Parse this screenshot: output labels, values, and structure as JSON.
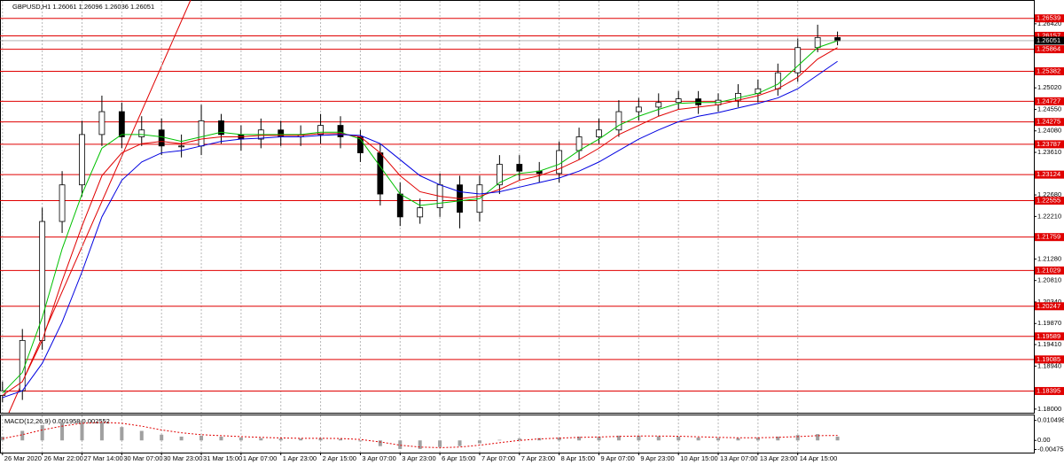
{
  "chart_data": {
    "type": "candlestick",
    "title": "GBPUSD,H1 1.26061 1.26096 1.26036 1.26051",
    "x": [
      0,
      8,
      16,
      24,
      32,
      40,
      48,
      56,
      64,
      72,
      80,
      88,
      96,
      104,
      112,
      120,
      128,
      136,
      144,
      152,
      160,
      168,
      176,
      184,
      192,
      200,
      208,
      216,
      224,
      232,
      240,
      248,
      256,
      264,
      272,
      280,
      288,
      296,
      304,
      312,
      320,
      328,
      336
    ],
    "open": [
      1.183,
      1.184,
      1.195,
      1.221,
      1.229,
      1.24,
      1.245,
      1.2395,
      1.241,
      1.2375,
      1.2375,
      1.243,
      1.24,
      1.239,
      1.241,
      1.2395,
      1.24,
      1.242,
      1.2395,
      1.236,
      1.227,
      1.222,
      1.224,
      1.229,
      1.223,
      1.229,
      1.2335,
      1.232,
      1.2315,
      1.2365,
      1.2395,
      1.241,
      1.245,
      1.246,
      1.247,
      1.2478,
      1.2465,
      1.2475,
      1.249,
      1.25,
      1.2535,
      1.259,
      1.2612
    ],
    "high": [
      1.186,
      1.1975,
      1.224,
      1.232,
      1.243,
      1.2485,
      1.247,
      1.244,
      1.2435,
      1.24,
      1.2465,
      1.2445,
      1.242,
      1.2435,
      1.243,
      1.242,
      1.2445,
      1.244,
      1.241,
      1.238,
      1.2295,
      1.226,
      1.2315,
      1.231,
      1.231,
      1.2355,
      1.2355,
      1.234,
      1.2385,
      1.2415,
      1.2435,
      1.2475,
      1.248,
      1.249,
      1.2495,
      1.2495,
      1.249,
      1.251,
      1.252,
      1.2555,
      1.261,
      1.264,
      1.2625
    ],
    "low": [
      1.1815,
      1.182,
      1.193,
      1.2185,
      1.2265,
      1.2375,
      1.237,
      1.2375,
      1.2355,
      1.235,
      1.2355,
      1.238,
      1.2365,
      1.237,
      1.2375,
      1.2375,
      1.238,
      1.237,
      1.234,
      1.2245,
      1.22,
      1.2205,
      1.222,
      1.2195,
      1.221,
      1.227,
      1.23,
      1.2295,
      1.2295,
      1.2345,
      1.238,
      1.2395,
      1.243,
      1.244,
      1.2455,
      1.2445,
      1.245,
      1.246,
      1.247,
      1.2485,
      1.2515,
      1.258,
      1.2595
    ],
    "close": [
      1.184,
      1.195,
      1.221,
      1.229,
      1.24,
      1.245,
      1.2395,
      1.241,
      1.2375,
      1.2375,
      1.243,
      1.24,
      1.239,
      1.241,
      1.2395,
      1.24,
      1.242,
      1.2395,
      1.236,
      1.227,
      1.222,
      1.224,
      1.229,
      1.223,
      1.229,
      1.2335,
      1.232,
      1.2315,
      1.2365,
      1.2395,
      1.241,
      1.245,
      1.246,
      1.247,
      1.2478,
      1.2465,
      1.2475,
      1.249,
      1.25,
      1.2535,
      1.259,
      1.2612,
      1.2605
    ],
    "moving_averages": [
      {
        "color": "#00c000",
        "values": [
          1.1835,
          1.188,
          1.2,
          1.215,
          1.227,
          1.237,
          1.24,
          1.24,
          1.2395,
          1.2385,
          1.2395,
          1.2405,
          1.24,
          1.24,
          1.24,
          1.24,
          1.2405,
          1.2405,
          1.239,
          1.233,
          1.227,
          1.2245,
          1.225,
          1.2255,
          1.226,
          1.2295,
          1.2315,
          1.232,
          1.2335,
          1.2365,
          1.239,
          1.242,
          1.244,
          1.2455,
          1.2468,
          1.247,
          1.247,
          1.248,
          1.249,
          1.251,
          1.255,
          1.259,
          1.2605
        ]
      },
      {
        "color": "#e00000",
        "values": [
          1.183,
          1.186,
          1.195,
          1.208,
          1.22,
          1.231,
          1.236,
          1.238,
          1.2385,
          1.238,
          1.239,
          1.2395,
          1.2395,
          1.2398,
          1.2398,
          1.2398,
          1.2402,
          1.2402,
          1.2395,
          1.236,
          1.231,
          1.2275,
          1.2265,
          1.226,
          1.2265,
          1.228,
          1.23,
          1.231,
          1.2325,
          1.2345,
          1.237,
          1.24,
          1.242,
          1.244,
          1.2455,
          1.246,
          1.2465,
          1.2475,
          1.2485,
          1.25,
          1.2525,
          1.2565,
          1.259
        ]
      },
      {
        "color": "#0000e0",
        "values": [
          1.1825,
          1.184,
          1.19,
          1.199,
          1.21,
          1.222,
          1.23,
          1.234,
          1.236,
          1.2365,
          1.2375,
          1.2385,
          1.239,
          1.2392,
          1.2395,
          1.2395,
          1.2398,
          1.24,
          1.2398,
          1.238,
          1.2345,
          1.231,
          1.229,
          1.2275,
          1.227,
          1.2275,
          1.2285,
          1.2295,
          1.2305,
          1.232,
          1.234,
          1.2365,
          1.239,
          1.241,
          1.2428,
          1.244,
          1.2448,
          1.2458,
          1.2468,
          1.248,
          1.25,
          1.253,
          1.256
        ]
      }
    ],
    "xlim": [
      -1,
      415
    ],
    "xticks": [
      {
        "value": 0,
        "label": "26 Mar 2020"
      },
      {
        "value": 16,
        "label": "26 Mar 22:00"
      },
      {
        "value": 32,
        "label": "27 Mar 14:00"
      },
      {
        "value": 48,
        "label": "30 Mar 07:00"
      },
      {
        "value": 64,
        "label": "30 Mar 23:00"
      },
      {
        "value": 80,
        "label": "31 Mar 15:00"
      },
      {
        "value": 96,
        "label": "1 Apr 07:00"
      },
      {
        "value": 112,
        "label": "1 Apr 23:00"
      },
      {
        "value": 128,
        "label": "2 Apr 15:00"
      },
      {
        "value": 144,
        "label": "3 Apr 07:00"
      },
      {
        "value": 160,
        "label": "3 Apr 23:00"
      },
      {
        "value": 176,
        "label": "6 Apr 15:00"
      },
      {
        "value": 192,
        "label": "7 Apr 07:00"
      },
      {
        "value": 208,
        "label": "7 Apr 23:00"
      },
      {
        "value": 224,
        "label": "8 Apr 15:00"
      },
      {
        "value": 240,
        "label": "9 Apr 07:00"
      },
      {
        "value": 256,
        "label": "9 Apr 23:00"
      },
      {
        "value": 272,
        "label": "10 Apr 15:00"
      },
      {
        "value": 288,
        "label": "13 Apr 07:00"
      },
      {
        "value": 304,
        "label": "13 Apr 23:00"
      },
      {
        "value": 320,
        "label": "14 Apr 15:00"
      }
    ],
    "ylim": [
      1.1792,
      1.2694
    ],
    "yticks": [
      {
        "value": 1.18,
        "label": "1.18000"
      },
      {
        "value": 1.1894,
        "label": "1.18940"
      },
      {
        "value": 1.1941,
        "label": "1.19410"
      },
      {
        "value": 1.1987,
        "label": "1.19870"
      },
      {
        "value": 1.2034,
        "label": "1.20340"
      },
      {
        "value": 1.2081,
        "label": "1.20810"
      },
      {
        "value": 1.2128,
        "label": "1.21280"
      },
      {
        "value": 1.2221,
        "label": "1.22210"
      },
      {
        "value": 1.2268,
        "label": "1.22680"
      },
      {
        "value": 1.2361,
        "label": "1.23610"
      },
      {
        "value": 1.2408,
        "label": "1.24080"
      },
      {
        "value": 1.2455,
        "label": "1.24550"
      },
      {
        "value": 1.2502,
        "label": "1.25020"
      },
      {
        "value": 1.2642,
        "label": "1.26420"
      }
    ],
    "levels": {
      "color": "#e00000",
      "values": [
        1.26539,
        1.26157,
        1.25864,
        1.25382,
        1.24727,
        1.24275,
        1.23787,
        1.23124,
        1.22555,
        1.21759,
        1.21029,
        1.20247,
        1.19589,
        1.19085,
        1.18395
      ]
    },
    "current_price": 1.26051,
    "indicator": {
      "title": "MACD(12,26,9) 0.001958 0.002552",
      "histogram": [
        0.002,
        0.005,
        0.008,
        0.0095,
        0.0105,
        0.0095,
        0.007,
        0.005,
        0.003,
        0.002,
        0.0025,
        0.002,
        0.0015,
        0.0012,
        0.001,
        0.001,
        0.0012,
        0.0008,
        -0.0005,
        -0.003,
        -0.0045,
        -0.0045,
        -0.0035,
        -0.003,
        -0.0015,
        0.0003,
        0.001,
        0.0012,
        0.0015,
        0.002,
        0.002,
        0.0025,
        0.0025,
        0.0022,
        0.002,
        0.0015,
        0.0012,
        0.0012,
        0.0015,
        0.002,
        0.0028,
        0.0033,
        0.002
      ],
      "signal": [
        0.001,
        0.003,
        0.0055,
        0.0075,
        0.009,
        0.0095,
        0.009,
        0.0075,
        0.0055,
        0.004,
        0.003,
        0.0025,
        0.002,
        0.0016,
        0.0013,
        0.0011,
        0.0011,
        0.001,
        0.0005,
        -0.0008,
        -0.0025,
        -0.0035,
        -0.0038,
        -0.0035,
        -0.0025,
        -0.0012,
        0.0,
        0.0008,
        0.0012,
        0.0016,
        0.0018,
        0.0021,
        0.0023,
        0.0023,
        0.0022,
        0.0019,
        0.0016,
        0.0014,
        0.0014,
        0.0016,
        0.002,
        0.0025,
        0.0026
      ],
      "signal_color": "#e00000",
      "histogram_color": "#a0a0a0",
      "ylim": [
        -0.0064,
        0.0136
      ],
      "yticks": [
        0.010498,
        {
          "value": 0,
          "label": "0.00"
        },
        -0.004758
      ]
    }
  }
}
